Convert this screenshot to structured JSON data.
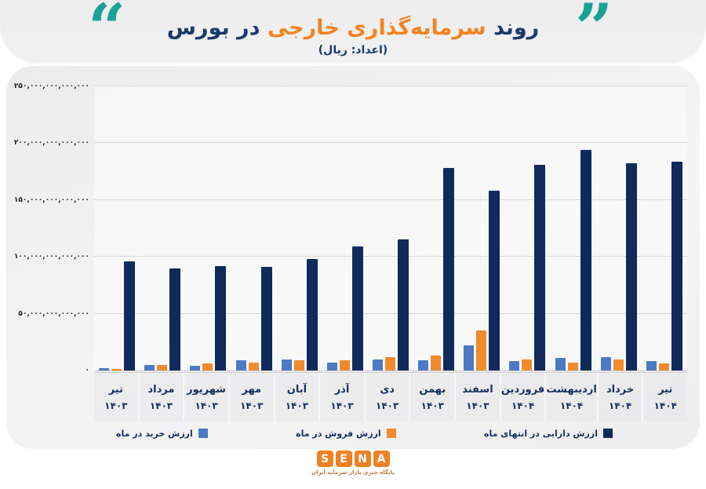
{
  "header": {
    "quote_left": "“",
    "quote_right": "”",
    "title_prefix": "روند ",
    "title_highlight": "سرمایه‌گذاری خارجی",
    "title_suffix": " در بورس",
    "subtitle": "(اعداد: ریال)",
    "colors": {
      "title_navy": "#1b3a6b",
      "title_orange": "#f58220",
      "quote_teal": "#18a396"
    }
  },
  "chart_data": {
    "type": "bar",
    "title": "روند سرمایه‌گذاری خارجی در بورس",
    "subtitle": "(اعداد: ریال)",
    "unit_note": "series values are estimates in trillions of rial (10^12), read from axis gridlines",
    "grid": true,
    "legend_position": "bottom",
    "categories": [
      {
        "month": "تیر",
        "year": "۱۴۰۳"
      },
      {
        "month": "مرداد",
        "year": "۱۴۰۳"
      },
      {
        "month": "شهریور",
        "year": "۱۴۰۳"
      },
      {
        "month": "مهر",
        "year": "۱۴۰۳"
      },
      {
        "month": "آبان",
        "year": "۱۴۰۳"
      },
      {
        "month": "آذر",
        "year": "۱۴۰۳"
      },
      {
        "month": "دی",
        "year": "۱۴۰۳"
      },
      {
        "month": "بهمن",
        "year": "۱۴۰۳"
      },
      {
        "month": "اسفند",
        "year": "۱۴۰۳"
      },
      {
        "month": "فروردین",
        "year": "۱۴۰۴"
      },
      {
        "month": "اردیبهشت",
        "year": "۱۴۰۴"
      },
      {
        "month": "خرداد",
        "year": "۱۴۰۴"
      },
      {
        "month": "تیر",
        "year": "۱۴۰۴"
      }
    ],
    "series": [
      {
        "name": "ارزش خرید در ماه",
        "color": "#4c7ac4",
        "role": "buy",
        "values": [
          2,
          5,
          4,
          9,
          10,
          7,
          10,
          9,
          22,
          8,
          11,
          12,
          8
        ]
      },
      {
        "name": "ارزش فروش در ماه",
        "color": "#f28a2e",
        "role": "sell",
        "values": [
          1.5,
          5,
          6,
          7,
          9,
          9,
          12,
          13,
          35,
          10,
          7,
          10,
          6
        ]
      },
      {
        "name": "ارزش دارایی در انتهای ماه",
        "color": "#112a5c",
        "role": "asset",
        "values": [
          96,
          90,
          92,
          91,
          98,
          109,
          115,
          178,
          158,
          181,
          194,
          182,
          184
        ]
      }
    ],
    "y_axis": {
      "max": 250,
      "ticks": [
        {
          "label": "۲۵۰,۰۰۰,۰۰۰,۰۰۰,۰۰۰",
          "value": 250
        },
        {
          "label": "۲۰۰,۰۰۰,۰۰۰,۰۰۰,۰۰۰",
          "value": 200
        },
        {
          "label": "۱۵۰,۰۰۰,۰۰۰,۰۰۰,۰۰۰",
          "value": 150
        },
        {
          "label": "۱۰۰,۰۰۰,۰۰۰,۰۰۰,۰۰۰",
          "value": 100
        },
        {
          "label": "۵۰,۰۰۰,۰۰۰,۰۰۰,۰۰۰",
          "value": 50
        },
        {
          "label": "۰",
          "value": 0
        }
      ]
    },
    "text_colors": {
      "category": "#16305e",
      "legend": "#16305e",
      "axis": "#1c1c1c"
    }
  },
  "footer": {
    "logo_letters": [
      "S",
      "E",
      "N",
      "A"
    ],
    "logo_color": "#ef8125",
    "tagline": "پایگاه خبری بازار سرمایه ایران",
    "tagline_color": "#c07a3a"
  }
}
